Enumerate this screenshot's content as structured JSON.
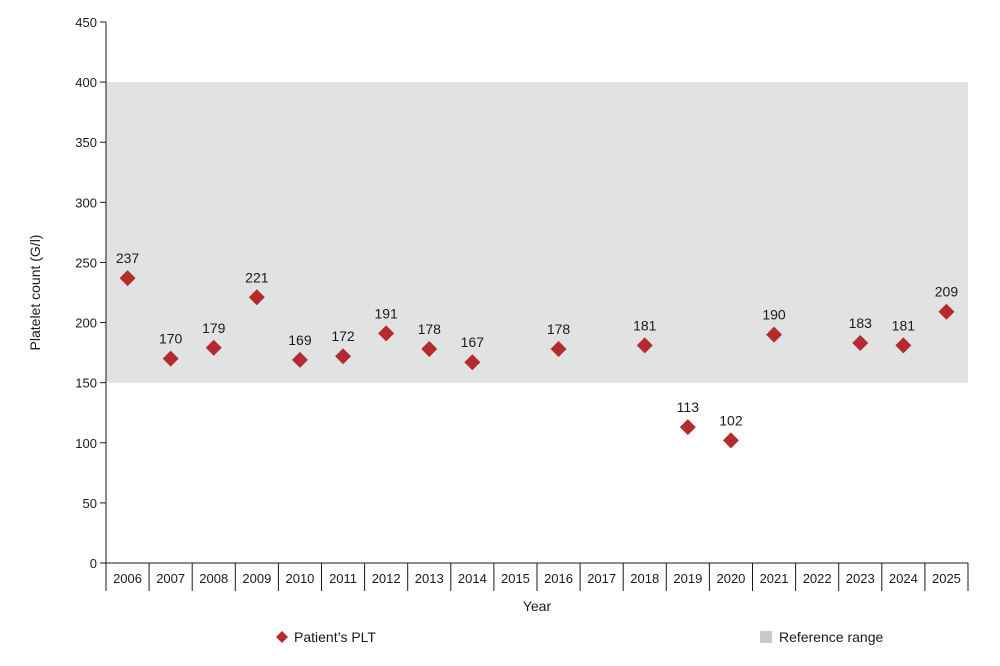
{
  "chart_data": {
    "type": "scatter",
    "xlabel": "Year",
    "ylabel": "Platelet count (G/l)",
    "ylim": [
      0,
      450
    ],
    "yticks": [
      0,
      50,
      100,
      150,
      200,
      250,
      300,
      350,
      400,
      450
    ],
    "categories": [
      "2006",
      "2007",
      "2008",
      "2009",
      "2010",
      "2011",
      "2012",
      "2013",
      "2014",
      "2015",
      "2016",
      "2017",
      "2018",
      "2019",
      "2020",
      "2021",
      "2022",
      "2023",
      "2024",
      "2025"
    ],
    "series": [
      {
        "name": "Patient’s PLT",
        "marker": "diamond",
        "color": "#b52a2e",
        "points": [
          {
            "x": 2006.0,
            "y": 237
          },
          {
            "x": 2007.0,
            "y": 170
          },
          {
            "x": 2008.0,
            "y": 179
          },
          {
            "x": 2009.0,
            "y": 221
          },
          {
            "x": 2010.0,
            "y": 169
          },
          {
            "x": 2011.0,
            "y": 172
          },
          {
            "x": 2012.0,
            "y": 191
          },
          {
            "x": 2013.0,
            "y": 178
          },
          {
            "x": 2014.0,
            "y": 167
          },
          {
            "x": 2016.0,
            "y": 178
          },
          {
            "x": 2018.0,
            "y": 181
          },
          {
            "x": 2019.0,
            "y": 113
          },
          {
            "x": 2020.0,
            "y": 102
          },
          {
            "x": 2021.0,
            "y": 190
          },
          {
            "x": 2023.0,
            "y": 183
          },
          {
            "x": 2024.0,
            "y": 181
          },
          {
            "x": 2025.0,
            "y": 209
          }
        ]
      }
    ],
    "reference_range": {
      "name": "Reference range",
      "low": 150,
      "high": 400,
      "color": "#e1e2e2"
    },
    "grid": false,
    "legend": "bottom"
  }
}
